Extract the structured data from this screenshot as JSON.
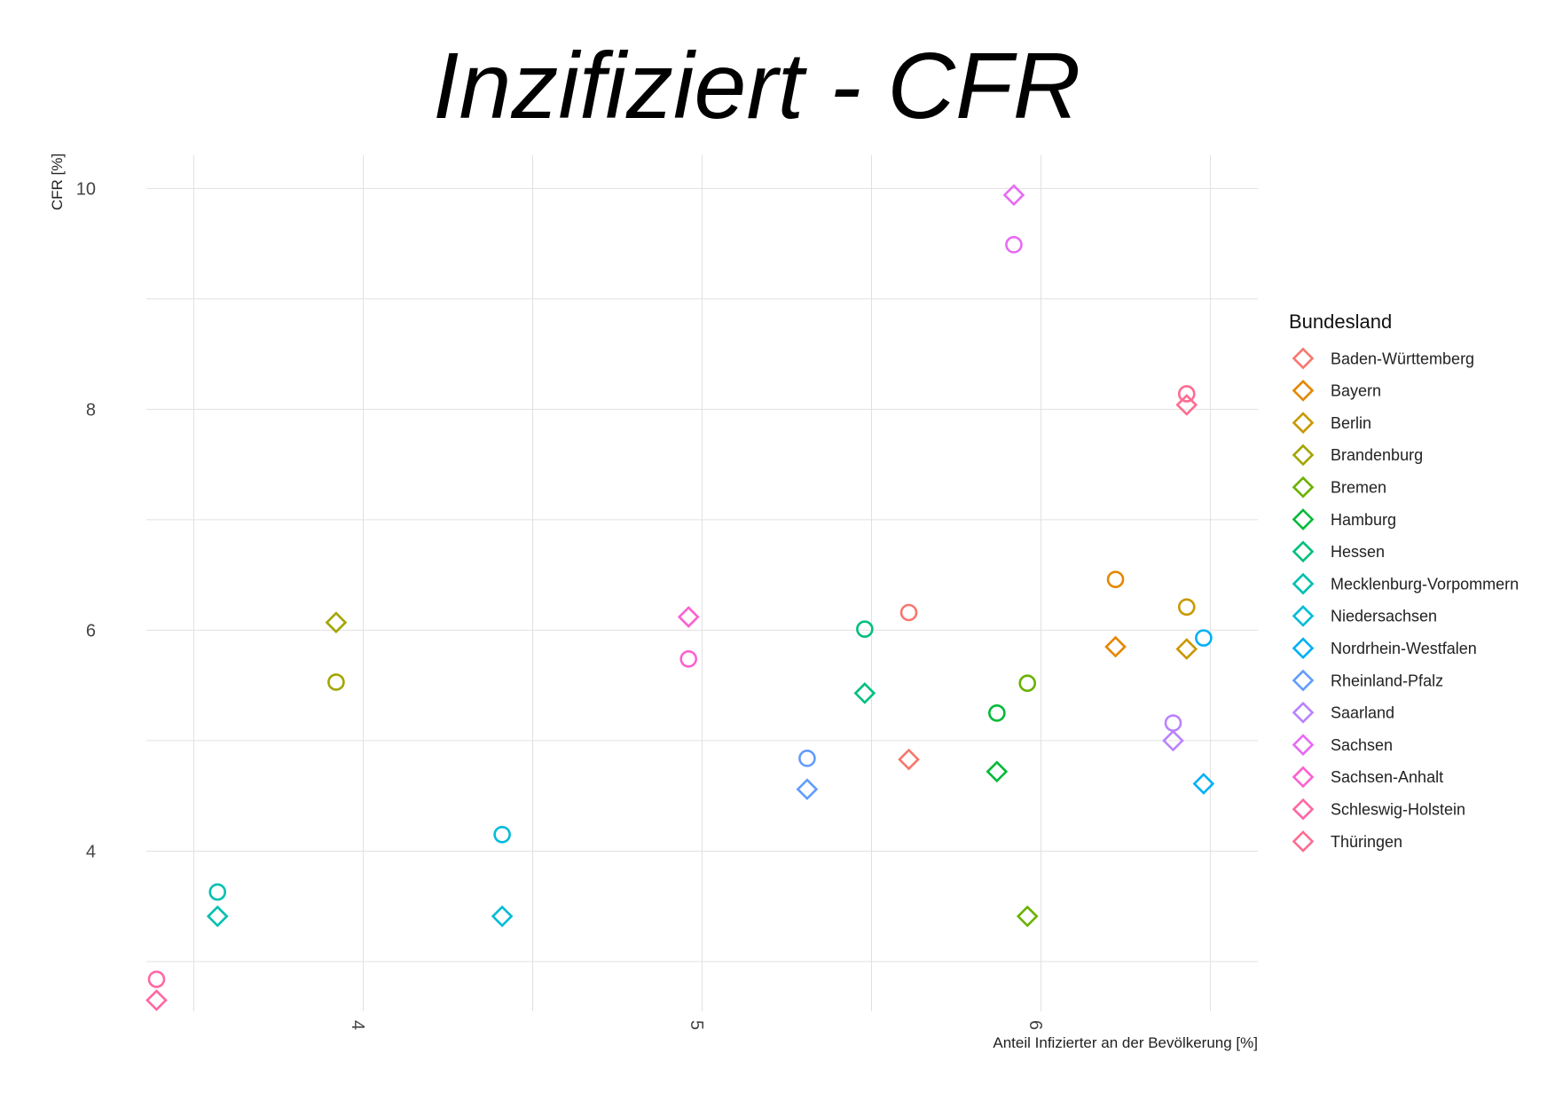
{
  "chart_data": {
    "type": "scatter",
    "title": "Inzifiziert - CFR",
    "xlabel": "Anteil Infizierter an der Bevölkerung [%]",
    "ylabel": "CFR [%]",
    "xlim": [
      3.36,
      6.64
    ],
    "ylim": [
      2.55,
      10.3
    ],
    "xticks": [
      4,
      5,
      6
    ],
    "yticks": [
      4,
      6,
      8,
      10
    ],
    "grid": true,
    "legend_title": "Bundesland",
    "legend_position": "right",
    "marker_types": {
      "circle": "circle",
      "diamond": "diamond"
    },
    "series": [
      {
        "name": "Baden-Württemberg",
        "color": "#F8766D",
        "circle": [
          5.61,
          6.16
        ],
        "diamond": [
          5.61,
          4.83
        ]
      },
      {
        "name": "Bayern",
        "color": "#E58700",
        "circle": [
          6.22,
          6.46
        ],
        "diamond": [
          6.22,
          5.85
        ]
      },
      {
        "name": "Berlin",
        "color": "#C99800",
        "circle": [
          6.43,
          6.21
        ],
        "diamond": [
          6.43,
          5.83
        ]
      },
      {
        "name": "Brandenburg",
        "color": "#A3A500",
        "circle": [
          3.92,
          5.53
        ],
        "diamond": [
          3.92,
          6.07
        ]
      },
      {
        "name": "Bremen",
        "color": "#6BB100",
        "circle": [
          5.96,
          5.52
        ],
        "diamond": [
          5.96,
          3.41
        ]
      },
      {
        "name": "Hamburg",
        "color": "#00BA38",
        "circle": [
          5.87,
          5.25
        ],
        "diamond": [
          5.87,
          4.72
        ]
      },
      {
        "name": "Hessen",
        "color": "#00BF7D",
        "circle": [
          5.48,
          6.01
        ],
        "diamond": [
          5.48,
          5.43
        ]
      },
      {
        "name": "Mecklenburg-Vorpommern",
        "color": "#00C0AF",
        "circle": [
          3.57,
          3.63
        ],
        "diamond": [
          3.57,
          3.41
        ]
      },
      {
        "name": "Niedersachsen",
        "color": "#00BCD8",
        "circle": [
          4.41,
          4.15
        ],
        "diamond": [
          4.41,
          3.41
        ]
      },
      {
        "name": "Nordrhein-Westfalen",
        "color": "#00B0F6",
        "circle": [
          6.48,
          5.93
        ],
        "diamond": [
          6.48,
          4.61
        ]
      },
      {
        "name": "Rheinland-Pfalz",
        "color": "#619CFF",
        "circle": [
          5.31,
          4.84
        ],
        "diamond": [
          5.31,
          4.56
        ]
      },
      {
        "name": "Saarland",
        "color": "#B983FF",
        "circle": [
          6.39,
          5.16
        ],
        "diamond": [
          6.39,
          5.0
        ]
      },
      {
        "name": "Sachsen",
        "color": "#E76BF3",
        "circle": [
          5.92,
          9.49
        ],
        "diamond": [
          5.92,
          9.94
        ]
      },
      {
        "name": "Sachsen-Anhalt",
        "color": "#FD61D1",
        "circle": [
          4.96,
          5.74
        ],
        "diamond": [
          4.96,
          6.12
        ]
      },
      {
        "name": "Schleswig-Holstein",
        "color": "#FF67A4",
        "circle": [
          3.39,
          2.84
        ],
        "diamond": [
          3.39,
          2.65
        ]
      },
      {
        "name": "Thüringen",
        "color": "#FF6C91",
        "circle": [
          6.43,
          8.14
        ],
        "diamond": [
          6.43,
          8.04
        ]
      }
    ]
  }
}
